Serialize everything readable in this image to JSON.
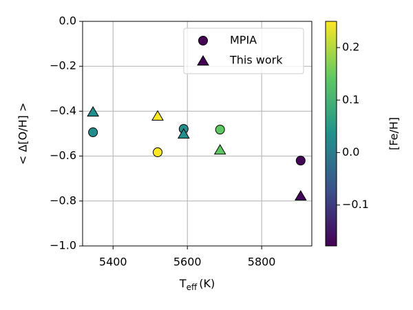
{
  "chart_data": {
    "type": "scatter",
    "xlabel": {
      "main": "T",
      "sub": "eff",
      "unit": "(K)"
    },
    "ylabel": "< Δ[O/H] >",
    "colorbar_label": "[Fe/H]",
    "xlim": [
      5318,
      5935
    ],
    "xticks": [
      5400,
      5600,
      5800
    ],
    "ylim": [
      -1.0,
      0.0
    ],
    "yticks": [
      {
        "value": 0,
        "label": "0.0"
      },
      {
        "value": -0.2,
        "label": "−0.2"
      },
      {
        "value": -0.4,
        "label": "−0.4"
      },
      {
        "value": -0.6,
        "label": "−0.6"
      },
      {
        "value": -0.8,
        "label": "−0.8"
      },
      {
        "value": -1.0,
        "label": "−1.0"
      }
    ],
    "clim": [
      -0.178,
      0.25
    ],
    "cticks": [
      {
        "value": 0.2,
        "label": "0.2"
      },
      {
        "value": 0.1,
        "label": "0.1"
      },
      {
        "value": 0,
        "label": "0.0"
      },
      {
        "value": -0.1,
        "label": "−0.1"
      }
    ],
    "colormap": "viridis",
    "grid": true,
    "legend": "upper right",
    "legend_marker_color": "#440154",
    "series": [
      {
        "name": "MPIA",
        "marker": "circle",
        "x": [
          5346,
          5520,
          5590,
          5688,
          5905
        ],
        "values": [
          -0.494,
          -0.583,
          -0.479,
          -0.482,
          -0.62
        ],
        "color_values": [
          0.03,
          0.25,
          0.03,
          0.14,
          -0.17
        ]
      },
      {
        "name": "This work",
        "marker": "triangle",
        "x": [
          5346,
          5520,
          5590,
          5688,
          5905
        ],
        "values": [
          -0.405,
          -0.423,
          -0.503,
          -0.574,
          -0.779
        ],
        "color_values": [
          0.03,
          0.25,
          0.03,
          0.14,
          -0.17
        ]
      }
    ]
  }
}
